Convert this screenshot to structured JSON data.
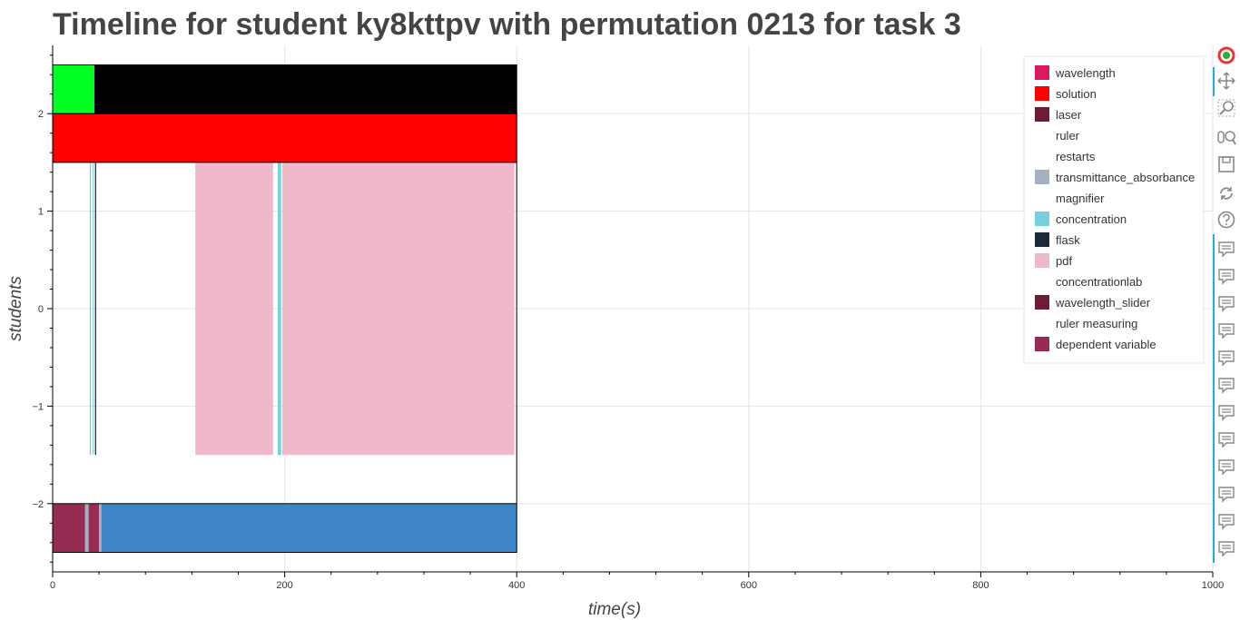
{
  "chart_data": {
    "type": "timeline",
    "title": "Timeline for student ky8kttpv with permutation 0213 for task 3",
    "xlabel": "time(s)",
    "ylabel": "students",
    "xlim": [
      0,
      1000
    ],
    "ylim": [
      -2.7,
      2.7
    ],
    "xticks": [
      0,
      200,
      400,
      600,
      800,
      1000
    ],
    "yticks": [
      -2,
      -1,
      0,
      1,
      2
    ],
    "ytick_labels": [
      "−2",
      "−1",
      "0",
      "1",
      "2"
    ],
    "grid": true,
    "legend_position": "top-right",
    "legend": [
      {
        "name": "wavelength",
        "color": "#d81b60"
      },
      {
        "name": "solution",
        "color": "#ff0000"
      },
      {
        "name": "laser",
        "color": "#6b1e31"
      },
      {
        "name": "ruler",
        "color": "#ffffff"
      },
      {
        "name": "restarts",
        "color": "#ffffff"
      },
      {
        "name": "transmittance_absorbance",
        "color": "#a3b0c2"
      },
      {
        "name": "magnifier",
        "color": "#ffffff"
      },
      {
        "name": "concentration",
        "color": "#74d2dc"
      },
      {
        "name": "flask",
        "color": "#1c2b3a"
      },
      {
        "name": "pdf",
        "color": "#efb8cb"
      },
      {
        "name": "concentrationlab",
        "color": "#ffffff"
      },
      {
        "name": "wavelength_slider",
        "color": "#6b1e31"
      },
      {
        "name": "ruler measuring",
        "color": "#ffffff"
      },
      {
        "name": "dependent variable",
        "color": "#962c54"
      }
    ],
    "segments": [
      {
        "row": 2.25,
        "x0": 0,
        "x1": 36,
        "color": "#00ff22"
      },
      {
        "row": 2.25,
        "x0": 36,
        "x1": 400,
        "color": "#000000"
      },
      {
        "row": 1.75,
        "x0": 0,
        "x1": 400,
        "color": "#ff0000"
      },
      {
        "row": 0,
        "x0": 32,
        "x1": 33,
        "color": "#a3b0c2"
      },
      {
        "row": 0,
        "x0": 34.5,
        "x1": 35.3,
        "color": "#74d2dc"
      },
      {
        "row": 0,
        "x0": 36.5,
        "x1": 37.5,
        "color": "#1c2b3a"
      },
      {
        "row": 0,
        "x0": 123,
        "x1": 190,
        "color": "#efb8cb"
      },
      {
        "row": 0,
        "x0": 194,
        "x1": 197,
        "color": "#74d2dc"
      },
      {
        "row": 0,
        "x0": 198,
        "x1": 398,
        "color": "#efb8cb"
      },
      {
        "row": -2.25,
        "x0": 0,
        "x1": 28,
        "color": "#962c54"
      },
      {
        "row": -2.25,
        "x0": 28,
        "x1": 31,
        "color": "#a3b0c2"
      },
      {
        "row": -2.25,
        "x0": 31,
        "x1": 40,
        "color": "#962c54"
      },
      {
        "row": -2.25,
        "x0": 40,
        "x1": 42,
        "color": "#a3b0c2"
      },
      {
        "row": -2.25,
        "x0": 42,
        "x1": 400,
        "color": "#3d85c6"
      }
    ],
    "row_heights": {
      "2.25": 0.5,
      "1.75": 0.5,
      "0": 3.0,
      "-2.25": 0.5
    }
  },
  "toolbar": {
    "tools": [
      "bokeh-logo-icon",
      "pan-icon",
      "box-zoom-icon",
      "wheel-zoom-icon",
      "save-icon",
      "reset-icon",
      "help-icon",
      "hover-icon",
      "hover-icon",
      "hover-icon",
      "hover-icon",
      "hover-icon",
      "hover-icon",
      "hover-icon",
      "hover-icon",
      "hover-icon",
      "hover-icon",
      "hover-icon",
      "hover-icon"
    ]
  }
}
